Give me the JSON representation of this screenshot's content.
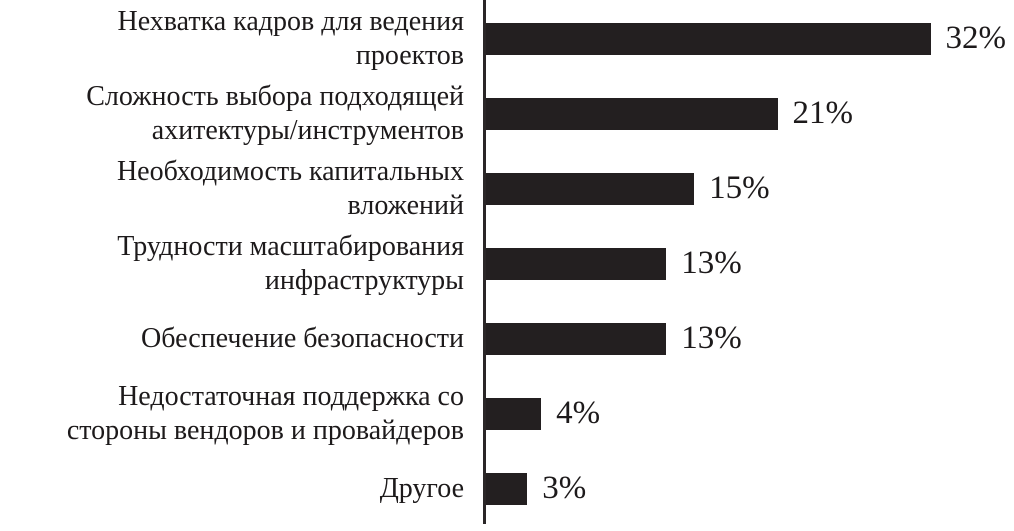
{
  "chart_data": {
    "type": "bar",
    "orientation": "horizontal",
    "title": "",
    "xlabel": "",
    "ylabel": "",
    "grid": false,
    "legend": "none",
    "value_axis_visible": false,
    "baseline_axis": "left-vertical-line",
    "value_scale_max": 32,
    "bar_color": "#231f20",
    "axis_color": "#2a2627",
    "background": "#ffffff",
    "categories": [
      "Нехватка кадров для ведения проектов",
      "Сложность выбора подходящей ахитектуры/инструментов",
      "Необходимость капитальных вложений",
      "Трудности масштабирования инфраструктуры",
      "Обеспечение безопасности",
      "Недостаточная поддержка со стороны вендоров и провайдеров",
      "Другое"
    ],
    "values": [
      32,
      21,
      15,
      13,
      13,
      4,
      3
    ],
    "rows": [
      {
        "label_lines": [
          "Нехватка кадров для ведения",
          "проектов"
        ],
        "value": 32,
        "value_label": "32%"
      },
      {
        "label_lines": [
          "Сложность выбора подходящей",
          "ахитектуры/инструментов"
        ],
        "value": 21,
        "value_label": "21%"
      },
      {
        "label_lines": [
          "Необходимость капитальных",
          "вложений"
        ],
        "value": 15,
        "value_label": "15%"
      },
      {
        "label_lines": [
          "Трудности масштабирования",
          "инфраструктуры"
        ],
        "value": 13,
        "value_label": "13%"
      },
      {
        "label_lines": [
          "Обеспечение безопасности"
        ],
        "value": 13,
        "value_label": "13%"
      },
      {
        "label_lines": [
          "Недостаточная поддержка со",
          "стороны вендоров и провайдеров"
        ],
        "value": 4,
        "value_label": "4%"
      },
      {
        "label_lines": [
          "Другое"
        ],
        "value": 3,
        "value_label": "3%"
      }
    ]
  }
}
